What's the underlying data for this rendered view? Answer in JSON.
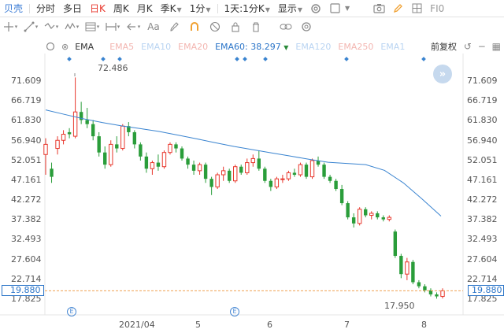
{
  "topbar": {
    "brand": "贝壳",
    "periods": [
      "分时",
      "多日",
      "日K",
      "周K",
      "月K",
      "季K"
    ],
    "active_period": "日K",
    "minute": "1分",
    "multi": "1天:1分K",
    "display": "显示",
    "code": "FI0"
  },
  "ema_bar": {
    "selected": "EMA",
    "ema5": "EMA5",
    "ema10": "EMA10",
    "ema20": "EMA20",
    "ema60_label": "EMA60:",
    "ema60_value": "38.297",
    "ema120": "EMA120",
    "ema250": "EMA250",
    "ema1": "EMA1",
    "adjust": "前复权"
  },
  "y_axis": {
    "ticks": [
      "71.609",
      "66.719",
      "61.830",
      "56.940",
      "52.051",
      "47.161",
      "42.272",
      "37.382",
      "32.493",
      "27.604",
      "22.714",
      "17.825"
    ]
  },
  "x_axis": {
    "ticks": [
      "2021/04",
      "5",
      "6",
      "7",
      "8"
    ]
  },
  "current_price": "19.880",
  "high_marker": "72.486",
  "low_marker": "17.950",
  "colors": {
    "up": "#e8372c",
    "down": "#2a9d3a",
    "ema60": "#3a84d0",
    "current_line": "#f0a050"
  },
  "chart_data": {
    "type": "candlestick",
    "ylim": [
      17.825,
      71.609
    ],
    "x_ticks": [
      "2021/04",
      "5",
      "6",
      "7",
      "8"
    ],
    "ema60_current": 38.297,
    "high": 72.486,
    "low": 17.95,
    "last": 19.88,
    "ema60_series": [
      64.5,
      63.4,
      62.3,
      61.4,
      60.6,
      59.9,
      59.2,
      58.3,
      57.4,
      56.4,
      55.5,
      54.7,
      53.9,
      53.1,
      52.3,
      51.6,
      51.3,
      51.0,
      49.6,
      46.5,
      42.5,
      38.3
    ],
    "candles": [
      {
        "o": 53.5,
        "h": 57.5,
        "l": 48.5,
        "c": 56.0
      },
      {
        "o": 50.0,
        "h": 51.5,
        "l": 46.5,
        "c": 48.0
      },
      {
        "o": 55.0,
        "h": 58.0,
        "l": 53.5,
        "c": 57.0
      },
      {
        "o": 57.0,
        "h": 59.5,
        "l": 56.0,
        "c": 58.5
      },
      {
        "o": 59.0,
        "h": 60.0,
        "l": 57.5,
        "c": 58.5
      },
      {
        "o": 58.0,
        "h": 72.5,
        "l": 57.5,
        "c": 64.0
      },
      {
        "o": 64.0,
        "h": 66.5,
        "l": 61.0,
        "c": 62.0
      },
      {
        "o": 62.0,
        "h": 65.0,
        "l": 60.0,
        "c": 61.0
      },
      {
        "o": 61.0,
        "h": 62.0,
        "l": 57.0,
        "c": 58.0
      },
      {
        "o": 58.0,
        "h": 59.0,
        "l": 53.0,
        "c": 54.0
      },
      {
        "o": 54.0,
        "h": 55.5,
        "l": 50.0,
        "c": 51.0
      },
      {
        "o": 51.0,
        "h": 57.0,
        "l": 50.5,
        "c": 56.0
      },
      {
        "o": 56.0,
        "h": 58.0,
        "l": 54.0,
        "c": 55.0
      },
      {
        "o": 55.0,
        "h": 61.0,
        "l": 54.5,
        "c": 60.5
      },
      {
        "o": 60.5,
        "h": 61.5,
        "l": 58.0,
        "c": 59.0
      },
      {
        "o": 59.0,
        "h": 59.5,
        "l": 55.0,
        "c": 56.0
      },
      {
        "o": 56.0,
        "h": 56.5,
        "l": 52.0,
        "c": 53.0
      },
      {
        "o": 53.0,
        "h": 54.0,
        "l": 49.0,
        "c": 50.0
      },
      {
        "o": 50.0,
        "h": 52.0,
        "l": 48.5,
        "c": 51.5
      },
      {
        "o": 51.5,
        "h": 53.5,
        "l": 49.5,
        "c": 50.5
      },
      {
        "o": 50.5,
        "h": 54.5,
        "l": 50.0,
        "c": 54.0
      },
      {
        "o": 54.0,
        "h": 56.5,
        "l": 53.5,
        "c": 56.0
      },
      {
        "o": 56.0,
        "h": 56.5,
        "l": 54.0,
        "c": 55.0
      },
      {
        "o": 55.0,
        "h": 55.5,
        "l": 52.0,
        "c": 52.5
      },
      {
        "o": 52.5,
        "h": 53.0,
        "l": 50.0,
        "c": 51.0
      },
      {
        "o": 51.0,
        "h": 52.0,
        "l": 48.5,
        "c": 49.5
      },
      {
        "o": 49.5,
        "h": 51.5,
        "l": 48.5,
        "c": 51.0
      },
      {
        "o": 51.0,
        "h": 51.5,
        "l": 46.5,
        "c": 47.5
      },
      {
        "o": 47.5,
        "h": 48.0,
        "l": 43.5,
        "c": 45.5
      },
      {
        "o": 45.5,
        "h": 49.0,
        "l": 45.0,
        "c": 48.5
      },
      {
        "o": 48.5,
        "h": 50.5,
        "l": 47.0,
        "c": 49.5
      },
      {
        "o": 49.5,
        "h": 50.0,
        "l": 46.5,
        "c": 47.0
      },
      {
        "o": 47.0,
        "h": 51.0,
        "l": 46.5,
        "c": 50.5
      },
      {
        "o": 50.5,
        "h": 51.0,
        "l": 48.5,
        "c": 49.0
      },
      {
        "o": 49.0,
        "h": 52.5,
        "l": 48.5,
        "c": 51.5
      },
      {
        "o": 51.5,
        "h": 53.5,
        "l": 50.5,
        "c": 52.5
      },
      {
        "o": 52.5,
        "h": 54.5,
        "l": 49.5,
        "c": 50.0
      },
      {
        "o": 50.0,
        "h": 50.5,
        "l": 46.5,
        "c": 47.0
      },
      {
        "o": 47.0,
        "h": 47.5,
        "l": 44.5,
        "c": 45.5
      },
      {
        "o": 45.5,
        "h": 48.0,
        "l": 45.0,
        "c": 47.5
      },
      {
        "o": 47.5,
        "h": 48.5,
        "l": 46.5,
        "c": 47.5
      },
      {
        "o": 47.5,
        "h": 49.5,
        "l": 47.0,
        "c": 49.0
      },
      {
        "o": 49.0,
        "h": 50.0,
        "l": 48.0,
        "c": 48.5
      },
      {
        "o": 48.5,
        "h": 51.5,
        "l": 48.0,
        "c": 51.0
      },
      {
        "o": 51.0,
        "h": 51.5,
        "l": 47.5,
        "c": 48.0
      },
      {
        "o": 48.0,
        "h": 52.5,
        "l": 47.5,
        "c": 52.0
      },
      {
        "o": 52.0,
        "h": 53.0,
        "l": 50.5,
        "c": 51.0
      },
      {
        "o": 51.0,
        "h": 51.5,
        "l": 47.5,
        "c": 48.0
      },
      {
        "o": 48.0,
        "h": 48.5,
        "l": 46.5,
        "c": 47.0
      },
      {
        "o": 47.0,
        "h": 47.5,
        "l": 44.5,
        "c": 45.0
      },
      {
        "o": 45.0,
        "h": 46.0,
        "l": 41.0,
        "c": 41.5
      },
      {
        "o": 41.5,
        "h": 42.0,
        "l": 37.5,
        "c": 38.0
      },
      {
        "o": 38.0,
        "h": 39.0,
        "l": 35.5,
        "c": 36.5
      },
      {
        "o": 36.5,
        "h": 40.5,
        "l": 36.0,
        "c": 40.0
      },
      {
        "o": 40.0,
        "h": 40.5,
        "l": 38.0,
        "c": 38.5
      },
      {
        "o": 38.5,
        "h": 39.5,
        "l": 37.5,
        "c": 39.0
      },
      {
        "o": 39.0,
        "h": 39.5,
        "l": 37.5,
        "c": 38.0
      },
      {
        "o": 38.0,
        "h": 38.5,
        "l": 37.0,
        "c": 37.5
      },
      {
        "o": 37.5,
        "h": 38.5,
        "l": 37.0,
        "c": 38.0
      },
      {
        "o": 34.5,
        "h": 35.0,
        "l": 28.0,
        "c": 28.5
      },
      {
        "o": 28.5,
        "h": 29.0,
        "l": 23.0,
        "c": 24.0
      },
      {
        "o": 24.0,
        "h": 28.0,
        "l": 22.5,
        "c": 27.0
      },
      {
        "o": 27.0,
        "h": 27.5,
        "l": 21.5,
        "c": 22.0
      },
      {
        "o": 22.0,
        "h": 22.5,
        "l": 20.5,
        "c": 21.0
      },
      {
        "o": 21.0,
        "h": 21.5,
        "l": 19.5,
        "c": 20.0
      },
      {
        "o": 20.0,
        "h": 20.5,
        "l": 18.5,
        "c": 19.0
      },
      {
        "o": 19.0,
        "h": 19.5,
        "l": 17.95,
        "c": 18.5
      },
      {
        "o": 18.5,
        "h": 20.5,
        "l": 18.0,
        "c": 19.88
      }
    ]
  }
}
